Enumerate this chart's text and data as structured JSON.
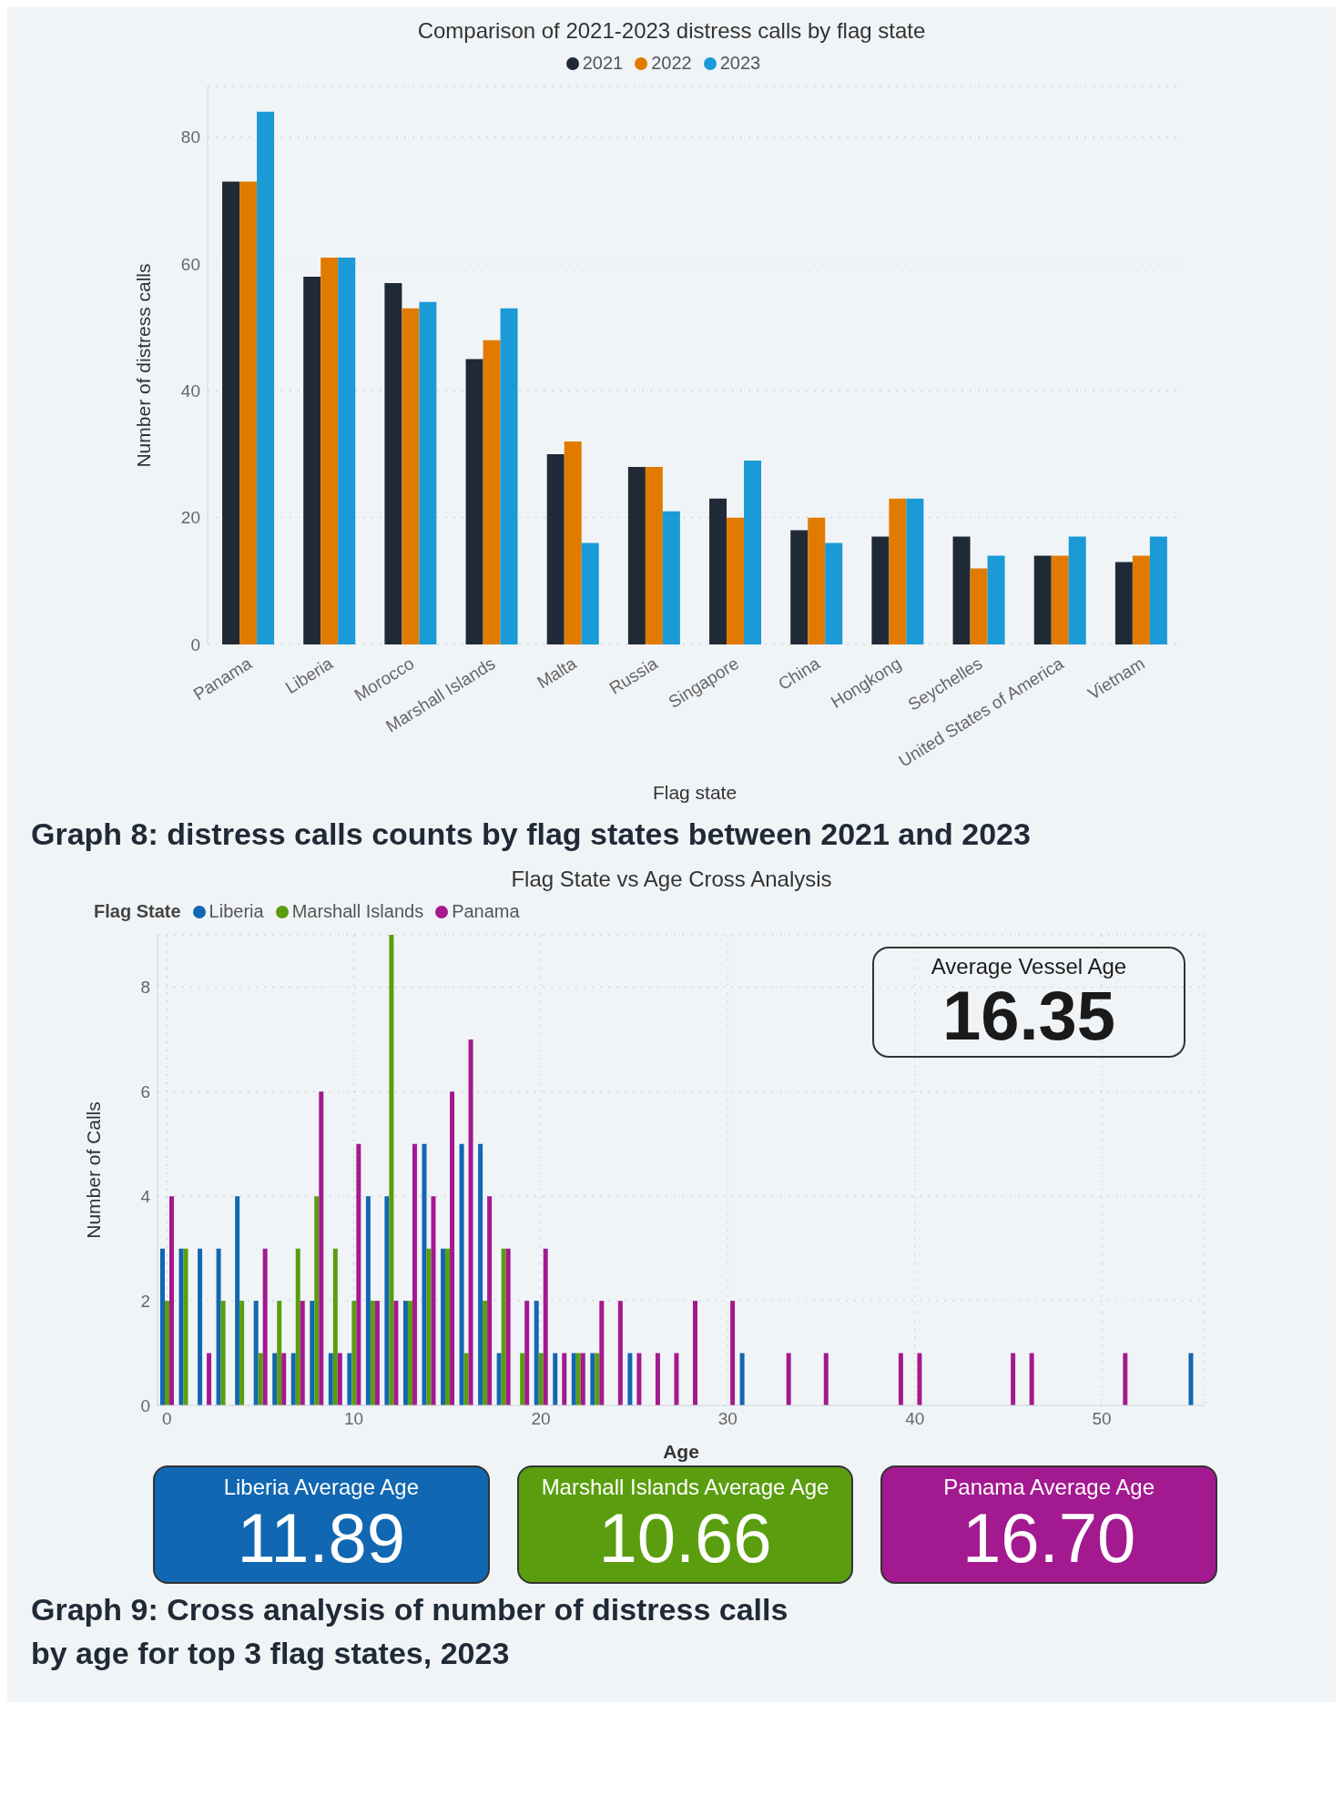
{
  "chart_data": [
    {
      "type": "bar",
      "title": "Comparison of 2021-2023 distress calls by flag state",
      "xlabel": "Flag state",
      "ylabel": "Number of distress calls",
      "categories": [
        "Panama",
        "Liberia",
        "Morocco",
        "Marshall Islands",
        "Malta",
        "Russia",
        "Singapore",
        "China",
        "Hongkong",
        "Seychelles",
        "United States of America",
        "Vietnam"
      ],
      "series": [
        {
          "name": "2021",
          "color": "#1f2a36",
          "values": [
            73,
            58,
            57,
            45,
            30,
            28,
            23,
            18,
            17,
            17,
            14,
            13
          ]
        },
        {
          "name": "2022",
          "color": "#e07b00",
          "values": [
            73,
            61,
            53,
            48,
            32,
            28,
            20,
            20,
            23,
            12,
            14,
            14
          ]
        },
        {
          "name": "2023",
          "color": "#1a9ad6",
          "values": [
            84,
            61,
            54,
            53,
            16,
            21,
            29,
            16,
            23,
            14,
            17,
            17
          ]
        }
      ],
      "ylim": [
        0,
        88
      ],
      "yticks": [
        0,
        20,
        40,
        60,
        80
      ],
      "grid": "y",
      "legend": "top",
      "annotations": [
        "Graph 8: distress calls counts by flag states between 2021 and 2023"
      ]
    },
    {
      "type": "bar",
      "title": "Flag State vs Age Cross Analysis",
      "xlabel": "Age",
      "ylabel": "Number of Calls",
      "legend_title": "Flag State",
      "x": [
        0,
        1,
        2,
        3,
        4,
        5,
        6,
        7,
        8,
        9,
        10,
        11,
        12,
        13,
        14,
        15,
        16,
        17,
        18,
        19,
        20,
        21,
        22,
        23,
        24,
        25,
        26,
        27,
        28,
        29,
        30,
        31,
        32,
        33,
        34,
        35,
        36,
        37,
        38,
        39,
        40,
        41,
        42,
        43,
        44,
        45,
        46,
        47,
        48,
        49,
        50,
        51,
        52,
        53,
        54,
        55
      ],
      "series": [
        {
          "name": "Liberia",
          "color": "#1167b1",
          "values": [
            3,
            3,
            3,
            3,
            4,
            2,
            1,
            1,
            2,
            1,
            1,
            4,
            4,
            2,
            5,
            3,
            5,
            5,
            1,
            null,
            2,
            1,
            1,
            1,
            null,
            1,
            null,
            null,
            null,
            null,
            null,
            1,
            null,
            null,
            null,
            null,
            null,
            null,
            null,
            null,
            null,
            null,
            null,
            null,
            null,
            null,
            null,
            null,
            null,
            null,
            null,
            null,
            null,
            null,
            null,
            1
          ]
        },
        {
          "name": "Marshall Islands",
          "color": "#5a9e0f",
          "values": [
            2,
            3,
            null,
            2,
            2,
            1,
            2,
            3,
            4,
            3,
            2,
            2,
            9,
            2,
            3,
            3,
            1,
            2,
            3,
            1,
            1,
            null,
            1,
            1,
            null,
            null,
            null,
            null,
            null,
            null,
            null,
            null,
            null,
            null,
            null,
            null,
            null,
            null,
            null,
            null,
            null,
            null,
            null,
            null,
            null,
            null,
            null,
            null,
            null,
            null,
            null,
            null,
            null,
            null,
            null,
            null
          ]
        },
        {
          "name": "Panama",
          "color": "#a3198f",
          "values": [
            4,
            null,
            1,
            null,
            null,
            3,
            1,
            2,
            6,
            1,
            5,
            2,
            2,
            5,
            4,
            6,
            7,
            4,
            3,
            2,
            3,
            1,
            1,
            2,
            2,
            1,
            1,
            1,
            2,
            null,
            2,
            null,
            null,
            1,
            null,
            1,
            null,
            null,
            null,
            1,
            1,
            null,
            null,
            null,
            null,
            1,
            1,
            null,
            null,
            null,
            null,
            1,
            null,
            null,
            null,
            null
          ]
        }
      ],
      "xlim": [
        -0.5,
        55.5
      ],
      "xticks": [
        0,
        10,
        20,
        30,
        40,
        50
      ],
      "ylim": [
        0,
        9
      ],
      "yticks": [
        0,
        2,
        4,
        6,
        8
      ],
      "grid": true,
      "legend": "top left",
      "annotations": [
        "Average Vessel Age",
        "16.35",
        "Liberia Average Age",
        "11.89",
        "Marshall Islands Average Age",
        "10.66",
        "Panama Average Age",
        "16.70",
        "Graph 9: Cross analysis of number of distress calls by age for top 3 flag states, 2023"
      ]
    }
  ]
}
